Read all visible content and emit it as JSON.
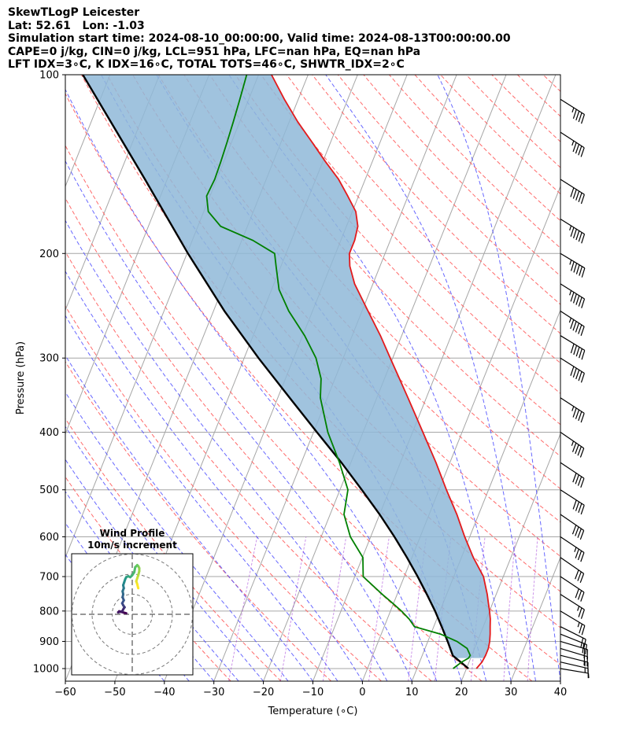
{
  "header": {
    "lines": [
      "SkewTLogP Leicester",
      "Lat: 52.61   Lon: -1.03",
      "Simulation start time: 2024-08-10_00:00:00, Valid time: 2024-08-13T00:00:00.00",
      "CAPE=0 j/kg, CIN=0 j/kg, LCL=951 hPa, LFC=nan hPa, EQ=nan hPa",
      "LFT IDX=3∘C, K IDX=16∘C, TOTAL TOTS=46∘C, SHWTR_IDX=2∘C"
    ]
  },
  "chart_data": [
    {
      "type": "line",
      "subtype": "skew-t log-p",
      "xlabel": "Temperature (∘C)",
      "ylabel": "Pressure (hPa)",
      "xlim": [
        -60,
        40
      ],
      "ylim": [
        1050,
        100
      ],
      "y_scale": "log",
      "x_ticks": [
        -60,
        -50,
        -40,
        -30,
        -20,
        -10,
        0,
        10,
        20,
        30,
        40
      ],
      "y_ticks": [
        100,
        200,
        300,
        400,
        500,
        600,
        700,
        800,
        900,
        1000
      ],
      "grid": true,
      "series": [
        {
          "key": "temperature",
          "color": "#e31a1c",
          "points": [
            [
              1000,
              22
            ],
            [
              975,
              22.6
            ],
            [
              950,
              22.8
            ],
            [
              925,
              22.8
            ],
            [
              900,
              22.5
            ],
            [
              875,
              22.0
            ],
            [
              850,
              21.4
            ],
            [
              825,
              20.8
            ],
            [
              800,
              20.0
            ],
            [
              775,
              19.1
            ],
            [
              750,
              18.2
            ],
            [
              700,
              16.0
            ],
            [
              650,
              12.4
            ],
            [
              600,
              9.0
            ],
            [
              550,
              5.6
            ],
            [
              500,
              1.5
            ],
            [
              450,
              -2.8
            ],
            [
              400,
              -7.9
            ],
            [
              350,
              -13.7
            ],
            [
              300,
              -20.5
            ],
            [
              275,
              -24.3
            ],
            [
              250,
              -28.8
            ],
            [
              225,
              -33.7
            ],
            [
              210,
              -36.1
            ],
            [
              200,
              -37.2
            ],
            [
              190,
              -37.2
            ],
            [
              180,
              -37.7
            ],
            [
              170,
              -39.3
            ],
            [
              160,
              -42.2
            ],
            [
              150,
              -45.4
            ],
            [
              140,
              -49.5
            ],
            [
              130,
              -53.7
            ],
            [
              120,
              -58.3
            ],
            [
              110,
              -62.8
            ],
            [
              100,
              -67.4
            ]
          ]
        },
        {
          "key": "dewpoint",
          "color": "#008000",
          "points": [
            [
              1000,
              17.3
            ],
            [
              975,
              18.5
            ],
            [
              960,
              19.6
            ],
            [
              950,
              19.7
            ],
            [
              925,
              18.5
            ],
            [
              900,
              15.9
            ],
            [
              875,
              12.0
            ],
            [
              850,
              6.1
            ],
            [
              825,
              4.4
            ],
            [
              800,
              2.2
            ],
            [
              775,
              -0.3
            ],
            [
              750,
              -3.0
            ],
            [
              700,
              -8.3
            ],
            [
              650,
              -9.9
            ],
            [
              600,
              -14.1
            ],
            [
              550,
              -17.2
            ],
            [
              500,
              -18.4
            ],
            [
              450,
              -22.3
            ],
            [
              400,
              -27.1
            ],
            [
              350,
              -31.4
            ],
            [
              325,
              -32.8
            ],
            [
              300,
              -35.5
            ],
            [
              275,
              -39.6
            ],
            [
              250,
              -44.8
            ],
            [
              230,
              -48.5
            ],
            [
              210,
              -51.0
            ],
            [
              200,
              -52.3
            ],
            [
              190,
              -57.8
            ],
            [
              180,
              -65.4
            ],
            [
              170,
              -69.1
            ],
            [
              160,
              -70.7
            ],
            [
              150,
              -70.4
            ],
            [
              140,
              -70.6
            ],
            [
              130,
              -70.9
            ],
            [
              120,
              -71.3
            ],
            [
              110,
              -71.8
            ],
            [
              100,
              -72.4
            ]
          ]
        },
        {
          "key": "parcel",
          "color": "#000000",
          "points": [
            [
              1000,
              20.4
            ],
            [
              975,
              18.3
            ],
            [
              951,
              16.2
            ],
            [
              900,
              14.0
            ],
            [
              850,
              11.6
            ],
            [
              800,
              9.0
            ],
            [
              750,
              6.0
            ],
            [
              700,
              2.7
            ],
            [
              650,
              -1.0
            ],
            [
              600,
              -5.2
            ],
            [
              550,
              -10.0
            ],
            [
              500,
              -15.6
            ],
            [
              450,
              -21.9
            ],
            [
              400,
              -29.3
            ],
            [
              350,
              -37.6
            ],
            [
              300,
              -47.1
            ],
            [
              250,
              -57.8
            ],
            [
              200,
              -69.8
            ],
            [
              150,
              -84.5
            ],
            [
              100,
              -105.5
            ]
          ]
        }
      ],
      "wind_barbs": [
        {
          "p": 1000,
          "u": -3.0,
          "v": 0.5
        },
        {
          "p": 975,
          "u": -6.5,
          "v": 1.5
        },
        {
          "p": 950,
          "u": -8.0,
          "v": 2.0
        },
        {
          "p": 925,
          "u": -10.0,
          "v": 3.0
        },
        {
          "p": 900,
          "u": -10.0,
          "v": 3.0
        },
        {
          "p": 875,
          "u": -10.0,
          "v": 4.0
        },
        {
          "p": 850,
          "u": -10.0,
          "v": 5.0
        },
        {
          "p": 800,
          "u": -10.0,
          "v": 6.0
        },
        {
          "p": 750,
          "u": -11.0,
          "v": 7.0
        },
        {
          "p": 700,
          "u": -12.0,
          "v": 8.0
        },
        {
          "p": 650,
          "u": -13.0,
          "v": 9.0
        },
        {
          "p": 600,
          "u": -15.0,
          "v": 10.0
        },
        {
          "p": 550,
          "u": -16.0,
          "v": 11.0
        },
        {
          "p": 500,
          "u": -17.0,
          "v": 11.0
        },
        {
          "p": 450,
          "u": -18.0,
          "v": 12.0
        },
        {
          "p": 400,
          "u": -19.0,
          "v": 13.0
        },
        {
          "p": 350,
          "u": -20.0,
          "v": 13.0
        },
        {
          "p": 300,
          "u": -22.0,
          "v": 14.0
        },
        {
          "p": 275,
          "u": -23.0,
          "v": 14.0
        },
        {
          "p": 250,
          "u": -23.0,
          "v": 15.0
        },
        {
          "p": 225,
          "u": -24.0,
          "v": 15.0
        },
        {
          "p": 200,
          "u": -25.0,
          "v": 15.0
        },
        {
          "p": 175,
          "u": -24.0,
          "v": 15.0
        },
        {
          "p": 150,
          "u": -22.0,
          "v": 14.0
        },
        {
          "p": 125,
          "u": -20.0,
          "v": 13.0
        },
        {
          "p": 110,
          "u": -19.0,
          "v": 12.0
        }
      ],
      "colors": {
        "dry_adiabat": "#ff5a5a",
        "moist_adiabat": "#4d4dff",
        "mixing_ratio": "#9c2cd6",
        "isotherm": "#a6a6a6",
        "cape_shading": "#8fb8d8"
      }
    },
    {
      "type": "scatter",
      "subtype": "hodograph",
      "title": "Wind Profile",
      "subtitle": "10m/s increment",
      "rings_ms": [
        10,
        20,
        30
      ],
      "trace_uv": [
        [
          -3.0,
          0.5
        ],
        [
          -6.5,
          1.5
        ],
        [
          -7.0,
          1.0
        ],
        [
          -5.0,
          1.5
        ],
        [
          -4.2,
          3.0
        ],
        [
          -3.8,
          3.5
        ],
        [
          -4.5,
          4.5
        ],
        [
          -5.0,
          5.5
        ],
        [
          -4.2,
          7.0
        ],
        [
          -4.8,
          8.5
        ],
        [
          -4.5,
          10.0
        ],
        [
          -4.8,
          11.5
        ],
        [
          -4.2,
          13.0
        ],
        [
          -4.5,
          14.5
        ],
        [
          -4.0,
          16.0
        ],
        [
          -3.5,
          17.5
        ],
        [
          -3.0,
          18.5
        ],
        [
          -2.0,
          19.0
        ],
        [
          -1.0,
          18.5
        ],
        [
          0.0,
          19.5
        ],
        [
          1.0,
          21.0
        ],
        [
          1.5,
          23.5
        ],
        [
          2.5,
          24.5
        ],
        [
          3.0,
          24.0
        ],
        [
          3.5,
          23.0
        ],
        [
          3.5,
          21.5
        ],
        [
          3.0,
          19.5
        ],
        [
          2.5,
          18.0
        ],
        [
          2.0,
          16.5
        ],
        [
          2.5,
          15.0
        ],
        [
          3.0,
          13.0
        ]
      ]
    }
  ]
}
